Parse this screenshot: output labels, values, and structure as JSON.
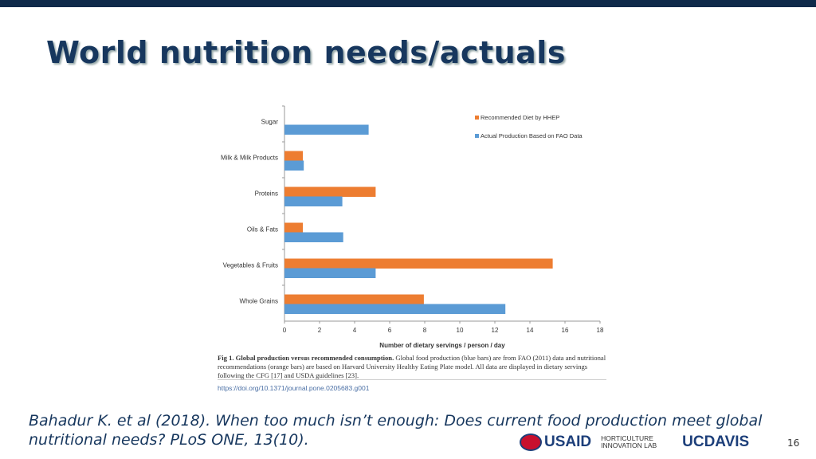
{
  "title": "World nutrition needs/actuals",
  "chart_data": {
    "type": "bar",
    "orientation": "horizontal",
    "categories": [
      "Sugar",
      "Milk & Milk Products",
      "Proteins",
      "Oils & Fats",
      "Vegetables & Fruits",
      "Whole Grains"
    ],
    "series": [
      {
        "name": "Recommended Diet by HHEP",
        "color": "#ed7d31",
        "values": [
          null,
          1.05,
          5.2,
          1.05,
          15.3,
          7.95
        ]
      },
      {
        "name": "Actual Production Based on FAO Data",
        "color": "#5b9bd5",
        "values": [
          4.8,
          1.1,
          3.3,
          3.35,
          5.2,
          12.6
        ]
      }
    ],
    "xlabel": "Number of dietary servings / person / day",
    "xlim": [
      0,
      18
    ],
    "xticks": [
      "0",
      "2",
      "4",
      "6",
      "8",
      "10",
      "12",
      "14",
      "16",
      "18"
    ],
    "legend_position": "top-right",
    "grid": false
  },
  "caption": {
    "bold": "Fig 1. Global production versus recommended consumption.",
    "text": " Global food production (blue bars) are from FAO (2011) data and nutritional recommendations (orange bars) are based on Harvard University Healthy Eating Plate model. All data are displayed in dietary servings following the CFG [17] and USDA guidelines [23].",
    "doi": "https://doi.org/10.1371/journal.pone.0205683.g001"
  },
  "citation": "Bahadur K. et al (2018). When too much isn’t enough: Does current food production meet global nutritional needs? PLoS ONE, 13(10).",
  "logos": {
    "usaid": "USAID",
    "hort": "HORTICULTURE INNOVATION LAB",
    "ucdavis": "UCDAVIS"
  },
  "page_number": "16"
}
